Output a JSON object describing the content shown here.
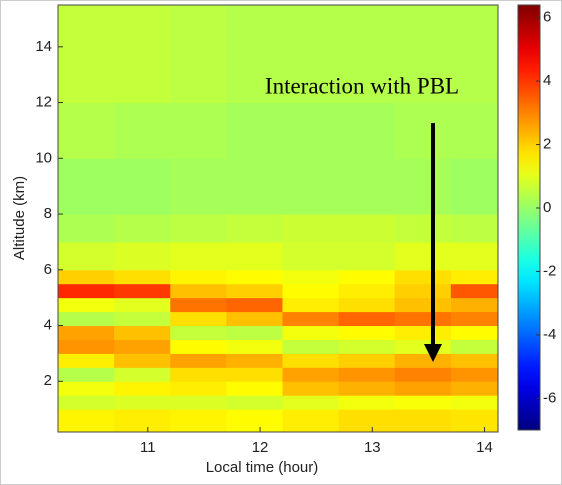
{
  "chart_data": {
    "type": "heatmap",
    "annotation": "Interaction with PBL",
    "x_label": "Local time (hour)",
    "y_label": "Altitude (km)",
    "x_bins": [
      10.2,
      10.7,
      11.2,
      11.7,
      12.2,
      12.7,
      13.2,
      13.7,
      14.12
    ],
    "y_bins": [
      0.18,
      1,
      1.5,
      2,
      2.5,
      3,
      3.5,
      4,
      4.5,
      5,
      5.5,
      6,
      7,
      8,
      10,
      12,
      15.5
    ],
    "z": [
      [
        1.5,
        1.6,
        1.5,
        1.4,
        1.6,
        1.8,
        1.8,
        1.7
      ],
      [
        0.8,
        0.9,
        0.9,
        0.8,
        1.0,
        1.2,
        1.3,
        1.2
      ],
      [
        1.2,
        1.5,
        1.6,
        1.4,
        2.2,
        2.4,
        2.6,
        2.4
      ],
      [
        0.4,
        0.8,
        1.8,
        1.8,
        2.6,
        2.8,
        3.0,
        2.8
      ],
      [
        1.6,
        2.2,
        2.6,
        2.4,
        1.8,
        2.0,
        2.4,
        2.2
      ],
      [
        2.8,
        2.6,
        1.4,
        1.2,
        0.6,
        0.8,
        1.0,
        0.6
      ],
      [
        2.6,
        2.2,
        0.6,
        0.5,
        1.2,
        1.4,
        1.6,
        1.4
      ],
      [
        0.4,
        0.6,
        1.8,
        2.2,
        3.0,
        3.4,
        3.2,
        3.0
      ],
      [
        1.2,
        1.0,
        3.2,
        3.4,
        1.6,
        1.8,
        2.2,
        2.4
      ],
      [
        4.2,
        4.0,
        2.2,
        2.0,
        1.4,
        1.6,
        2.0,
        3.6
      ],
      [
        2.0,
        1.8,
        1.5,
        1.4,
        1.2,
        1.4,
        1.8,
        1.6
      ],
      [
        0.8,
        0.9,
        1.0,
        1.0,
        0.8,
        0.8,
        1.0,
        1.0
      ],
      [
        0.3,
        0.4,
        0.5,
        0.6,
        0.7,
        0.7,
        0.6,
        0.5
      ],
      [
        0.1,
        0.1,
        0.2,
        0.2,
        0.2,
        0.2,
        0.2,
        0.1
      ],
      [
        0.4,
        0.3,
        0.3,
        0.2,
        0.2,
        0.2,
        0.3,
        0.3
      ],
      [
        0.6,
        0.6,
        0.5,
        0.4,
        0.4,
        0.4,
        0.4,
        0.4
      ]
    ],
    "colormap": "jet",
    "xlim": [
      10.2,
      14.12
    ],
    "xticks": [
      11,
      12,
      13,
      14
    ],
    "ylim": [
      0.18,
      15.5
    ],
    "yticks": [
      2,
      4,
      6,
      8,
      10,
      12,
      14
    ],
    "clim": [
      -7,
      6.4
    ],
    "cticks": [
      -6,
      -4,
      -2,
      0,
      2,
      4,
      6
    ]
  }
}
